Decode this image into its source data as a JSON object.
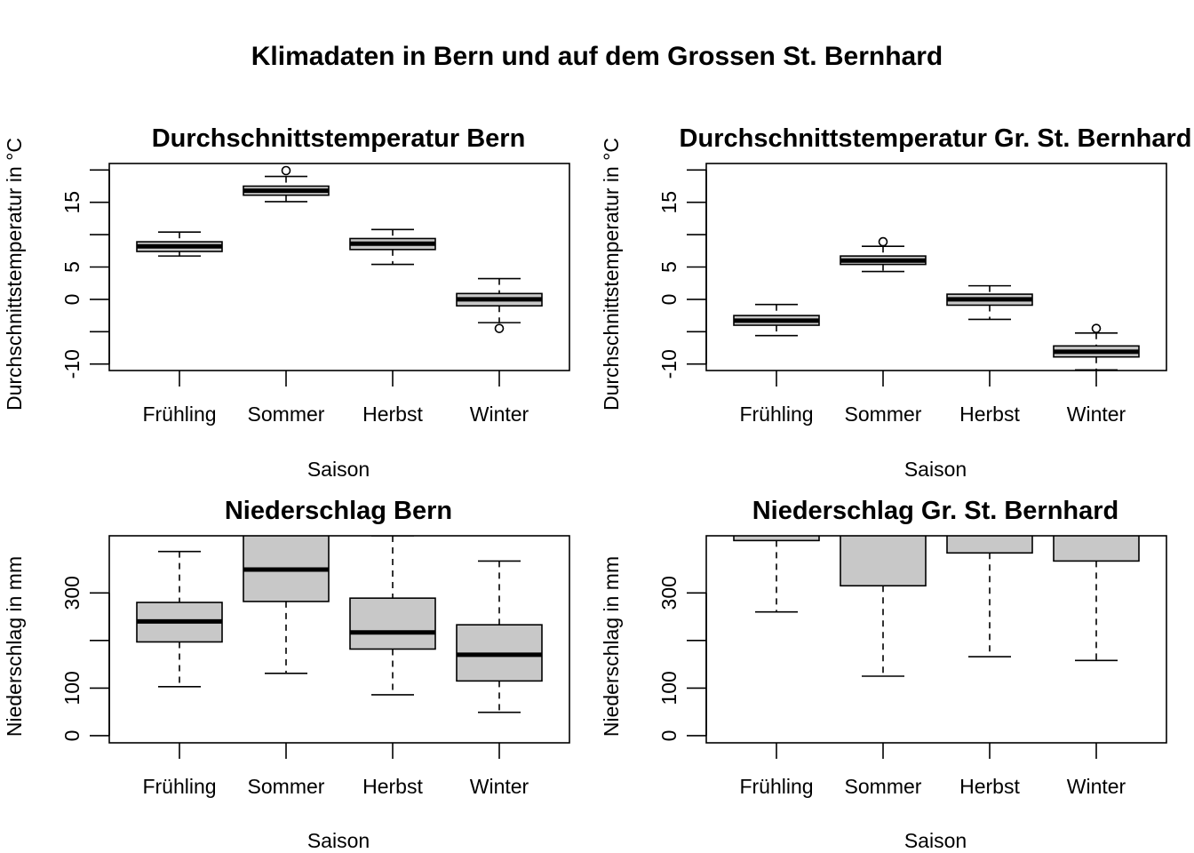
{
  "figure": {
    "title": "Klimadaten in Bern und auf dem Grossen St. Bernhard"
  },
  "chart_data": [
    {
      "type": "boxplot",
      "title": "Durchschnittstemperatur Bern",
      "xlabel": "Saison",
      "ylabel": "Durchschnittstemperatur in °C",
      "ylim": [
        -11,
        21
      ],
      "yticks": [
        -10,
        -5,
        0,
        5,
        10,
        15,
        20
      ],
      "yticklabels": [
        "-10",
        "",
        "0",
        "5",
        "",
        "15",
        ""
      ],
      "categories": [
        "Frühling",
        "Sommer",
        "Herbst",
        "Winter"
      ],
      "boxes": [
        {
          "category": "Frühling",
          "whisker_low": 6.7,
          "q1": 7.4,
          "median": 8.2,
          "q3": 8.9,
          "whisker_high": 10.4,
          "outliers": []
        },
        {
          "category": "Sommer",
          "whisker_low": 15.1,
          "q1": 16.1,
          "median": 16.8,
          "q3": 17.5,
          "whisker_high": 19.0,
          "outliers": [
            19.9
          ]
        },
        {
          "category": "Herbst",
          "whisker_low": 5.4,
          "q1": 7.7,
          "median": 8.6,
          "q3": 9.4,
          "whisker_high": 10.8,
          "outliers": []
        },
        {
          "category": "Winter",
          "whisker_low": -3.6,
          "q1": -1.0,
          "median": 0.0,
          "q3": 0.9,
          "whisker_high": 3.2,
          "outliers": [
            -4.5
          ]
        }
      ]
    },
    {
      "type": "boxplot",
      "title": "Durchschnittstemperatur Gr. St. Bernhard",
      "xlabel": "Saison",
      "ylabel": "Durchschnittstemperatur in °C",
      "ylim": [
        -11,
        21
      ],
      "yticks": [
        -10,
        -5,
        0,
        5,
        10,
        15,
        20
      ],
      "yticklabels": [
        "-10",
        "",
        "0",
        "5",
        "",
        "15",
        ""
      ],
      "categories": [
        "Frühling",
        "Sommer",
        "Herbst",
        "Winter"
      ],
      "boxes": [
        {
          "category": "Frühling",
          "whisker_low": -5.6,
          "q1": -4.0,
          "median": -3.3,
          "q3": -2.5,
          "whisker_high": -0.8,
          "outliers": []
        },
        {
          "category": "Sommer",
          "whisker_low": 4.3,
          "q1": 5.4,
          "median": 6.0,
          "q3": 6.7,
          "whisker_high": 8.2,
          "outliers": [
            8.9
          ]
        },
        {
          "category": "Herbst",
          "whisker_low": -3.1,
          "q1": -0.9,
          "median": 0.0,
          "q3": 0.8,
          "whisker_high": 2.1,
          "outliers": []
        },
        {
          "category": "Winter",
          "whisker_low": -10.9,
          "q1": -8.9,
          "median": -8.1,
          "q3": -7.2,
          "whisker_high": -5.2,
          "outliers": [
            -4.5
          ]
        }
      ]
    },
    {
      "type": "boxplot",
      "title": "Niederschlag Bern",
      "xlabel": "Saison",
      "ylabel": "Niederschlag in mm",
      "ylim": [
        -15,
        420
      ],
      "yticks": [
        0,
        100,
        200,
        300
      ],
      "yticklabels": [
        "0",
        "100",
        "",
        "300"
      ],
      "categories": [
        "Frühling",
        "Sommer",
        "Herbst",
        "Winter"
      ],
      "boxes": [
        {
          "category": "Frühling",
          "whisker_low": 103,
          "q1": 197,
          "median": 240,
          "q3": 280,
          "whisker_high": 387,
          "outliers": []
        },
        {
          "category": "Sommer",
          "whisker_low": 131,
          "q1": 282,
          "median": 349,
          "q3": 420,
          "whisker_high": 420,
          "outliers": []
        },
        {
          "category": "Herbst",
          "whisker_low": 86,
          "q1": 182,
          "median": 217,
          "q3": 289,
          "whisker_high": 420,
          "outliers": []
        },
        {
          "category": "Winter",
          "whisker_low": 49,
          "q1": 115,
          "median": 170,
          "q3": 233,
          "whisker_high": 367,
          "outliers": []
        }
      ]
    },
    {
      "type": "boxplot",
      "title": "Niederschlag Gr. St. Bernhard",
      "xlabel": "Saison",
      "ylabel": "Niederschlag in mm",
      "ylim": [
        -15,
        420
      ],
      "yticks": [
        0,
        100,
        200,
        300
      ],
      "yticklabels": [
        "0",
        "100",
        "",
        "300"
      ],
      "categories": [
        "Frühling",
        "Sommer",
        "Herbst",
        "Winter"
      ],
      "boxes": [
        {
          "category": "Frühling",
          "whisker_low": 260,
          "q1": 410,
          "median": null,
          "q3": 420,
          "whisker_high": 420,
          "outliers": []
        },
        {
          "category": "Sommer",
          "whisker_low": 125,
          "q1": 315,
          "median": null,
          "q3": 420,
          "whisker_high": 420,
          "outliers": []
        },
        {
          "category": "Herbst",
          "whisker_low": 166,
          "q1": 384,
          "median": null,
          "q3": 420,
          "whisker_high": 420,
          "outliers": []
        },
        {
          "category": "Winter",
          "whisker_low": 158,
          "q1": 367,
          "median": null,
          "q3": 420,
          "whisker_high": 420,
          "outliers": []
        }
      ]
    }
  ]
}
